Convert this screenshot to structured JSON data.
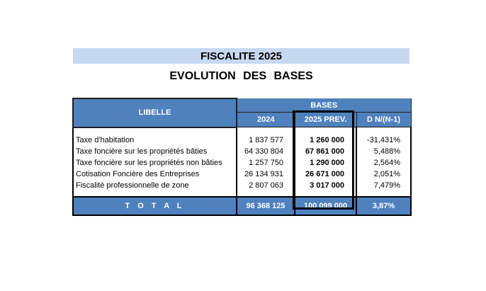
{
  "title": "FISCALITE 2025",
  "subtitle": "EVOLUTION   DES   BASES",
  "table": {
    "header": {
      "libelle": "LIBELLE",
      "bases": "BASES",
      "col_2024": "2024",
      "col_2025": "2025 PREV.",
      "col_delta": "D N/(N-1)"
    },
    "rows": [
      {
        "label": "Taxe d'habitation",
        "v2024": "1 837 577",
        "v2025": "1 260 000",
        "delta": "-31,431%"
      },
      {
        "label": "Taxe foncière sur les propriétés bâties",
        "v2024": "64 330 804",
        "v2025": "67 861 000",
        "delta": "5,488%"
      },
      {
        "label": "Taxe foncière sur les propriétés non bâties",
        "v2024": "1 257 750",
        "v2025": "1 290 000",
        "delta": "2,564%"
      },
      {
        "label": "Cotisation Foncière des Entreprises",
        "v2024": "26 134 931",
        "v2025": "26 671 000",
        "delta": "2,051%"
      },
      {
        "label": "Fiscalité professionnelle de zone",
        "v2024": "2 807 063",
        "v2025": "3 017 000",
        "delta": "7,479%"
      }
    ],
    "total": {
      "label": "T O T A L",
      "v2024": "96 368 125",
      "v2025": "100 099 000",
      "delta": "3,87%"
    }
  },
  "colors": {
    "title_bg": "#c6d9f0",
    "header_bg": "#4f81bd"
  }
}
